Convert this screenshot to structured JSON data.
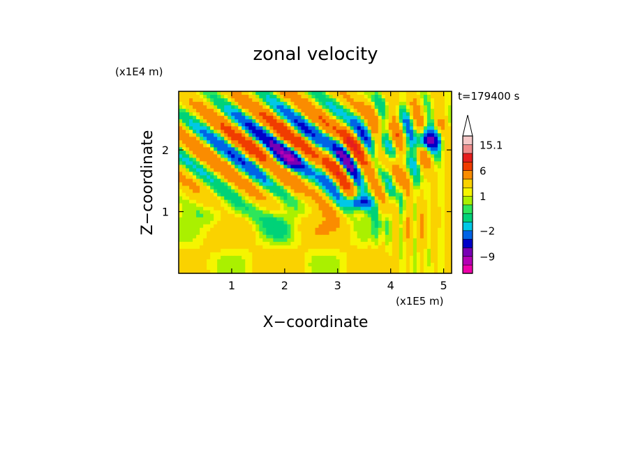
{
  "chart_data": {
    "type": "heatmap",
    "title": "zonal velocity",
    "xlabel": "X−coordinate",
    "ylabel": "Z−coordinate",
    "x_unit": "(x1E5 m)",
    "y_unit": "(x1E4 m)",
    "time_label": "t=179400 s",
    "xlim": [
      0,
      5.15
    ],
    "ylim": [
      0,
      2.95
    ],
    "x_ticks": [
      1,
      2,
      3,
      4,
      5
    ],
    "y_ticks": [
      1,
      2
    ],
    "grid": false,
    "colorbar": {
      "position": "right",
      "extend": "max",
      "labels": [
        {
          "value": "15.1",
          "at": 15.1
        },
        {
          "value": "6",
          "at": 6
        },
        {
          "value": "1",
          "at": 1
        },
        {
          "value": "−2",
          "at": -2
        },
        {
          "value": "−9",
          "at": -9
        }
      ],
      "levels": [
        {
          "lo": -16,
          "hi": -12,
          "color": "#ee00aa"
        },
        {
          "lo": -12,
          "hi": -9,
          "color": "#b400b4"
        },
        {
          "lo": -9,
          "hi": -6,
          "color": "#7800b4"
        },
        {
          "lo": -6,
          "hi": -4,
          "color": "#0000c8"
        },
        {
          "lo": -4,
          "hi": -2,
          "color": "#0064e6"
        },
        {
          "lo": -2,
          "hi": -1,
          "color": "#00c8e6"
        },
        {
          "lo": -1,
          "hi": 0,
          "color": "#00d278"
        },
        {
          "lo": 0,
          "hi": 0.5,
          "color": "#2ee65a"
        },
        {
          "lo": 0.5,
          "hi": 1,
          "color": "#aaf000"
        },
        {
          "lo": 1,
          "hi": 1.5,
          "color": "#f5f500"
        },
        {
          "lo": 1.5,
          "hi": 3,
          "color": "#fad200"
        },
        {
          "lo": 3,
          "hi": 6,
          "color": "#fa8c00"
        },
        {
          "lo": 6,
          "hi": 9,
          "color": "#f03c00"
        },
        {
          "lo": 9,
          "hi": 12,
          "color": "#e61e1e"
        },
        {
          "lo": 12,
          "hi": 15.1,
          "color": "#f08c8c"
        },
        {
          "lo": 15.1,
          "hi": 18,
          "color": "#f5c8c8"
        }
      ]
    },
    "field_features": [
      {
        "kind": "wave_packet",
        "x": [
          0.2,
          3.9
        ],
        "z": [
          1.2,
          2.9
        ],
        "amplitude": 12
      },
      {
        "kind": "jet_core_negative",
        "x": 1.9,
        "z": 1.85,
        "value": -7
      },
      {
        "kind": "jet_core_negative",
        "x": 0.9,
        "z": 2.5,
        "value": -6
      },
      {
        "kind": "jet_core_negative",
        "x": 4.7,
        "z": 2.15,
        "value": -6
      },
      {
        "kind": "jet_core_negative",
        "x": 3.4,
        "z": 1.15,
        "value": -5
      },
      {
        "kind": "background_positive",
        "x": [
          0,
          5.15
        ],
        "z": [
          0,
          1.2
        ],
        "value": 1.6
      }
    ]
  }
}
